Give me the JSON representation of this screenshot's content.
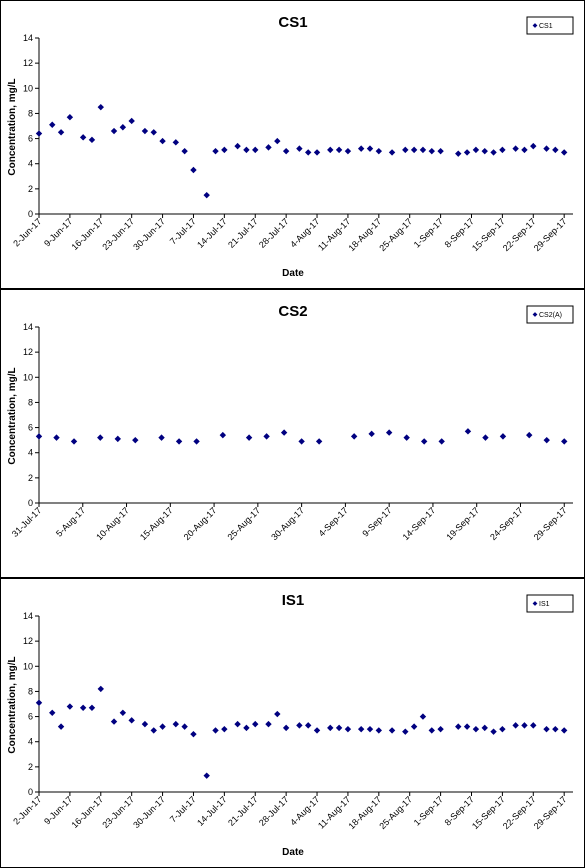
{
  "chart_data": [
    {
      "type": "scatter",
      "title": "CS1",
      "xlabel": "Date",
      "ylabel": "Concentration, mg/L",
      "ylim": [
        0,
        14
      ],
      "yticks": [
        "0",
        "2",
        "4",
        "6",
        "8",
        "10",
        "12",
        "14"
      ],
      "xlim": [
        "2017-06-02",
        "2017-10-01"
      ],
      "xtick_dates": [
        "2017-06-02",
        "2017-06-09",
        "2017-06-16",
        "2017-06-23",
        "2017-06-30",
        "2017-07-07",
        "2017-07-14",
        "2017-07-21",
        "2017-07-28",
        "2017-08-04",
        "2017-08-11",
        "2017-08-18",
        "2017-08-25",
        "2017-09-01",
        "2017-09-08",
        "2017-09-15",
        "2017-09-22",
        "2017-09-29"
      ],
      "xtick_labels": [
        "2-Jun-17",
        "9-Jun-17",
        "16-Jun-17",
        "23-Jun-17",
        "30-Jun-17",
        "7-Jul-17",
        "14-Jul-17",
        "21-Jul-17",
        "28-Jul-17",
        "4-Aug-17",
        "11-Aug-17",
        "18-Aug-17",
        "25-Aug-17",
        "1-Sep-17",
        "8-Sep-17",
        "15-Sep-17",
        "22-Sep-17",
        "29-Sep-17"
      ],
      "grid": false,
      "legend": "top-right",
      "color": "#000080",
      "series": [
        {
          "name": "CS1",
          "points": [
            [
              "2017-06-02",
              6.4
            ],
            [
              "2017-06-05",
              7.1
            ],
            [
              "2017-06-07",
              6.5
            ],
            [
              "2017-06-09",
              7.7
            ],
            [
              "2017-06-12",
              6.1
            ],
            [
              "2017-06-14",
              5.9
            ],
            [
              "2017-06-16",
              8.5
            ],
            [
              "2017-06-19",
              6.6
            ],
            [
              "2017-06-21",
              6.9
            ],
            [
              "2017-06-23",
              7.4
            ],
            [
              "2017-06-26",
              6.6
            ],
            [
              "2017-06-28",
              6.5
            ],
            [
              "2017-06-30",
              5.8
            ],
            [
              "2017-07-03",
              5.7
            ],
            [
              "2017-07-05",
              5.0
            ],
            [
              "2017-07-07",
              3.5
            ],
            [
              "2017-07-10",
              1.5
            ],
            [
              "2017-07-12",
              5.0
            ],
            [
              "2017-07-14",
              5.1
            ],
            [
              "2017-07-17",
              5.4
            ],
            [
              "2017-07-19",
              5.1
            ],
            [
              "2017-07-21",
              5.1
            ],
            [
              "2017-07-24",
              5.3
            ],
            [
              "2017-07-26",
              5.8
            ],
            [
              "2017-07-28",
              5.0
            ],
            [
              "2017-07-31",
              5.2
            ],
            [
              "2017-08-02",
              4.9
            ],
            [
              "2017-08-04",
              4.9
            ],
            [
              "2017-08-07",
              5.1
            ],
            [
              "2017-08-09",
              5.1
            ],
            [
              "2017-08-11",
              5.0
            ],
            [
              "2017-08-14",
              5.2
            ],
            [
              "2017-08-16",
              5.2
            ],
            [
              "2017-08-18",
              5.0
            ],
            [
              "2017-08-21",
              4.9
            ],
            [
              "2017-08-24",
              5.1
            ],
            [
              "2017-08-26",
              5.1
            ],
            [
              "2017-08-28",
              5.1
            ],
            [
              "2017-08-30",
              5.0
            ],
            [
              "2017-09-01",
              5.0
            ],
            [
              "2017-09-05",
              4.8
            ],
            [
              "2017-09-07",
              4.9
            ],
            [
              "2017-09-09",
              5.1
            ],
            [
              "2017-09-11",
              5.0
            ],
            [
              "2017-09-13",
              4.9
            ],
            [
              "2017-09-15",
              5.1
            ],
            [
              "2017-09-18",
              5.2
            ],
            [
              "2017-09-20",
              5.1
            ],
            [
              "2017-09-22",
              5.4
            ],
            [
              "2017-09-25",
              5.2
            ],
            [
              "2017-09-27",
              5.1
            ],
            [
              "2017-09-29",
              4.9
            ]
          ]
        }
      ]
    },
    {
      "type": "scatter",
      "title": "CS2",
      "xlabel": "",
      "ylabel": "Concentration, mg/L",
      "ylim": [
        0,
        14
      ],
      "yticks": [
        "0",
        "2",
        "4",
        "6",
        "8",
        "10",
        "12",
        "14"
      ],
      "xlim": [
        "2017-07-31",
        "2017-09-30"
      ],
      "xtick_dates": [
        "2017-07-31",
        "2017-08-05",
        "2017-08-10",
        "2017-08-15",
        "2017-08-20",
        "2017-08-25",
        "2017-08-30",
        "2017-09-04",
        "2017-09-09",
        "2017-09-14",
        "2017-09-19",
        "2017-09-24",
        "2017-09-29"
      ],
      "xtick_labels": [
        "31-Jul-17",
        "5-Aug-17",
        "10-Aug-17",
        "15-Aug-17",
        "20-Aug-17",
        "25-Aug-17",
        "30-Aug-17",
        "4-Sep-17",
        "9-Sep-17",
        "14-Sep-17",
        "19-Sep-17",
        "24-Sep-17",
        "29-Sep-17"
      ],
      "grid": false,
      "legend": "top-right",
      "color": "#000080",
      "series": [
        {
          "name": "CS2(A)",
          "points": [
            [
              "2017-07-31",
              5.3
            ],
            [
              "2017-08-02",
              5.2
            ],
            [
              "2017-08-04",
              4.9
            ],
            [
              "2017-08-07",
              5.2
            ],
            [
              "2017-08-09",
              5.1
            ],
            [
              "2017-08-11",
              5.0
            ],
            [
              "2017-08-14",
              5.2
            ],
            [
              "2017-08-16",
              4.9
            ],
            [
              "2017-08-18",
              4.9
            ],
            [
              "2017-08-21",
              5.4
            ],
            [
              "2017-08-24",
              5.2
            ],
            [
              "2017-08-26",
              5.3
            ],
            [
              "2017-08-28",
              5.6
            ],
            [
              "2017-08-30",
              4.9
            ],
            [
              "2017-09-01",
              4.9
            ],
            [
              "2017-09-05",
              5.3
            ],
            [
              "2017-09-07",
              5.5
            ],
            [
              "2017-09-09",
              5.6
            ],
            [
              "2017-09-11",
              5.2
            ],
            [
              "2017-09-13",
              4.9
            ],
            [
              "2017-09-15",
              4.9
            ],
            [
              "2017-09-18",
              5.7
            ],
            [
              "2017-09-20",
              5.2
            ],
            [
              "2017-09-22",
              5.3
            ],
            [
              "2017-09-25",
              5.4
            ],
            [
              "2017-09-27",
              5.0
            ],
            [
              "2017-09-29",
              4.9
            ]
          ]
        }
      ]
    },
    {
      "type": "scatter",
      "title": "IS1",
      "xlabel": "Date",
      "ylabel": "Concentration, mg/L",
      "ylim": [
        0,
        14
      ],
      "yticks": [
        "0",
        "2",
        "4",
        "6",
        "8",
        "10",
        "12",
        "14"
      ],
      "xlim": [
        "2017-06-02",
        "2017-10-01"
      ],
      "xtick_dates": [
        "2017-06-02",
        "2017-06-09",
        "2017-06-16",
        "2017-06-23",
        "2017-06-30",
        "2017-07-07",
        "2017-07-14",
        "2017-07-21",
        "2017-07-28",
        "2017-08-04",
        "2017-08-11",
        "2017-08-18",
        "2017-08-25",
        "2017-09-01",
        "2017-09-08",
        "2017-09-15",
        "2017-09-22",
        "2017-09-29"
      ],
      "xtick_labels": [
        "2-Jun-17",
        "9-Jun-17",
        "16-Jun-17",
        "23-Jun-17",
        "30-Jun-17",
        "7-Jul-17",
        "14-Jul-17",
        "21-Jul-17",
        "28-Jul-17",
        "4-Aug-17",
        "11-Aug-17",
        "18-Aug-17",
        "25-Aug-17",
        "1-Sep-17",
        "8-Sep-17",
        "15-Sep-17",
        "22-Sep-17",
        "29-Sep-17"
      ],
      "grid": false,
      "legend": "top-right",
      "color": "#000080",
      "series": [
        {
          "name": "IS1",
          "points": [
            [
              "2017-06-02",
              7.1
            ],
            [
              "2017-06-05",
              6.3
            ],
            [
              "2017-06-07",
              5.2
            ],
            [
              "2017-06-09",
              6.8
            ],
            [
              "2017-06-12",
              6.7
            ],
            [
              "2017-06-14",
              6.7
            ],
            [
              "2017-06-16",
              8.2
            ],
            [
              "2017-06-19",
              5.6
            ],
            [
              "2017-06-21",
              6.3
            ],
            [
              "2017-06-23",
              5.7
            ],
            [
              "2017-06-26",
              5.4
            ],
            [
              "2017-06-28",
              4.9
            ],
            [
              "2017-06-30",
              5.2
            ],
            [
              "2017-07-03",
              5.4
            ],
            [
              "2017-07-05",
              5.2
            ],
            [
              "2017-07-07",
              4.6
            ],
            [
              "2017-07-10",
              1.3
            ],
            [
              "2017-07-12",
              4.9
            ],
            [
              "2017-07-14",
              5.0
            ],
            [
              "2017-07-17",
              5.4
            ],
            [
              "2017-07-19",
              5.1
            ],
            [
              "2017-07-21",
              5.4
            ],
            [
              "2017-07-24",
              5.4
            ],
            [
              "2017-07-26",
              6.2
            ],
            [
              "2017-07-28",
              5.1
            ],
            [
              "2017-07-31",
              5.3
            ],
            [
              "2017-08-02",
              5.3
            ],
            [
              "2017-08-04",
              4.9
            ],
            [
              "2017-08-07",
              5.1
            ],
            [
              "2017-08-09",
              5.1
            ],
            [
              "2017-08-11",
              5.0
            ],
            [
              "2017-08-14",
              5.0
            ],
            [
              "2017-08-16",
              5.0
            ],
            [
              "2017-08-18",
              4.9
            ],
            [
              "2017-08-21",
              4.9
            ],
            [
              "2017-08-24",
              4.8
            ],
            [
              "2017-08-26",
              5.2
            ],
            [
              "2017-08-28",
              6.0
            ],
            [
              "2017-08-30",
              4.9
            ],
            [
              "2017-09-01",
              5.0
            ],
            [
              "2017-09-05",
              5.2
            ],
            [
              "2017-09-07",
              5.2
            ],
            [
              "2017-09-09",
              5.0
            ],
            [
              "2017-09-11",
              5.1
            ],
            [
              "2017-09-13",
              4.8
            ],
            [
              "2017-09-15",
              5.0
            ],
            [
              "2017-09-18",
              5.3
            ],
            [
              "2017-09-20",
              5.3
            ],
            [
              "2017-09-22",
              5.3
            ],
            [
              "2017-09-25",
              5.0
            ],
            [
              "2017-09-27",
              5.0
            ],
            [
              "2017-09-29",
              4.9
            ]
          ]
        }
      ]
    }
  ]
}
